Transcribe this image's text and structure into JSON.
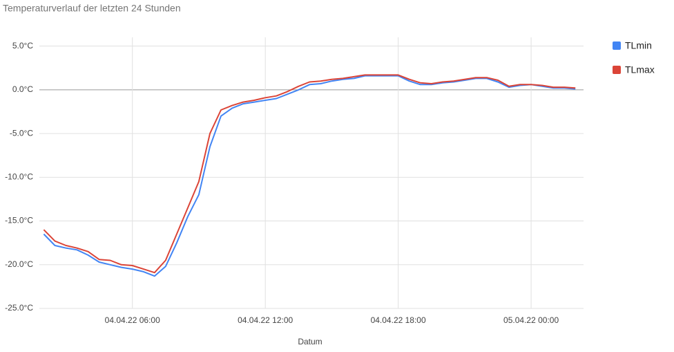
{
  "chart_data": {
    "type": "line",
    "title": "Temperaturverlauf der letzten 24 Stunden",
    "xlabel": "Datum",
    "x": [
      "04.04.22 02:00",
      "04.04.22 02:30",
      "04.04.22 03:00",
      "04.04.22 03:30",
      "04.04.22 04:00",
      "04.04.22 04:30",
      "04.04.22 05:00",
      "04.04.22 05:30",
      "04.04.22 06:00",
      "04.04.22 06:30",
      "04.04.22 07:00",
      "04.04.22 07:30",
      "04.04.22 08:00",
      "04.04.22 08:30",
      "04.04.22 09:00",
      "04.04.22 09:30",
      "04.04.22 10:00",
      "04.04.22 10:30",
      "04.04.22 11:00",
      "04.04.22 11:30",
      "04.04.22 12:00",
      "04.04.22 12:30",
      "04.04.22 13:00",
      "04.04.22 13:30",
      "04.04.22 14:00",
      "04.04.22 14:30",
      "04.04.22 15:00",
      "04.04.22 15:30",
      "04.04.22 16:00",
      "04.04.22 16:30",
      "04.04.22 17:00",
      "04.04.22 17:30",
      "04.04.22 18:00",
      "04.04.22 18:30",
      "04.04.22 19:00",
      "04.04.22 19:30",
      "04.04.22 20:00",
      "04.04.22 20:30",
      "04.04.22 21:00",
      "04.04.22 21:30",
      "04.04.22 22:00",
      "04.04.22 22:30",
      "04.04.22 23:00",
      "04.04.22 23:30",
      "05.04.22 00:00",
      "05.04.22 00:30",
      "05.04.22 01:00",
      "05.04.22 01:30",
      "05.04.22 02:00"
    ],
    "series": [
      {
        "name": "TLmin",
        "color": "#4285f4",
        "values": [
          -16.5,
          -17.8,
          -18.1,
          -18.3,
          -18.9,
          -19.7,
          -20.0,
          -20.3,
          -20.5,
          -20.8,
          -21.3,
          -20.2,
          -17.5,
          -14.5,
          -12.0,
          -6.5,
          -3.0,
          -2.1,
          -1.6,
          -1.4,
          -1.2,
          -1.0,
          -0.5,
          0.0,
          0.6,
          0.7,
          1.0,
          1.2,
          1.3,
          1.6,
          1.6,
          1.6,
          1.6,
          1.0,
          0.6,
          0.6,
          0.8,
          0.9,
          1.1,
          1.3,
          1.3,
          0.9,
          0.3,
          0.5,
          0.6,
          0.4,
          0.2,
          0.2,
          0.1
        ]
      },
      {
        "name": "TLmax",
        "color": "#db4437",
        "values": [
          -16.0,
          -17.3,
          -17.8,
          -18.1,
          -18.5,
          -19.4,
          -19.5,
          -20.0,
          -20.1,
          -20.5,
          -20.9,
          -19.5,
          -16.5,
          -13.5,
          -10.5,
          -5.0,
          -2.3,
          -1.8,
          -1.4,
          -1.2,
          -0.9,
          -0.7,
          -0.2,
          0.4,
          0.9,
          1.0,
          1.2,
          1.3,
          1.5,
          1.7,
          1.7,
          1.7,
          1.7,
          1.2,
          0.8,
          0.7,
          0.9,
          1.0,
          1.2,
          1.4,
          1.4,
          1.1,
          0.4,
          0.6,
          0.6,
          0.5,
          0.3,
          0.3,
          0.2
        ]
      }
    ],
    "xlim": [
      "04.04.22 01:48",
      "05.04.22 02:22"
    ],
    "xticks": [
      "04.04.22 06:00",
      "04.04.22 12:00",
      "04.04.22 18:00",
      "05.04.22 00:00"
    ],
    "ylim": [
      -25,
      6
    ],
    "yticks": [
      {
        "value": -25,
        "label": "-25.0°C"
      },
      {
        "value": -20,
        "label": "-20.0°C"
      },
      {
        "value": -15,
        "label": "-15.0°C"
      },
      {
        "value": -10,
        "label": "-10.0°C"
      },
      {
        "value": -5,
        "label": "-5.0°C"
      },
      {
        "value": 0,
        "label": "0.0°C"
      },
      {
        "value": 5,
        "label": "5.0°C"
      }
    ],
    "grid": true,
    "legend": "right"
  }
}
